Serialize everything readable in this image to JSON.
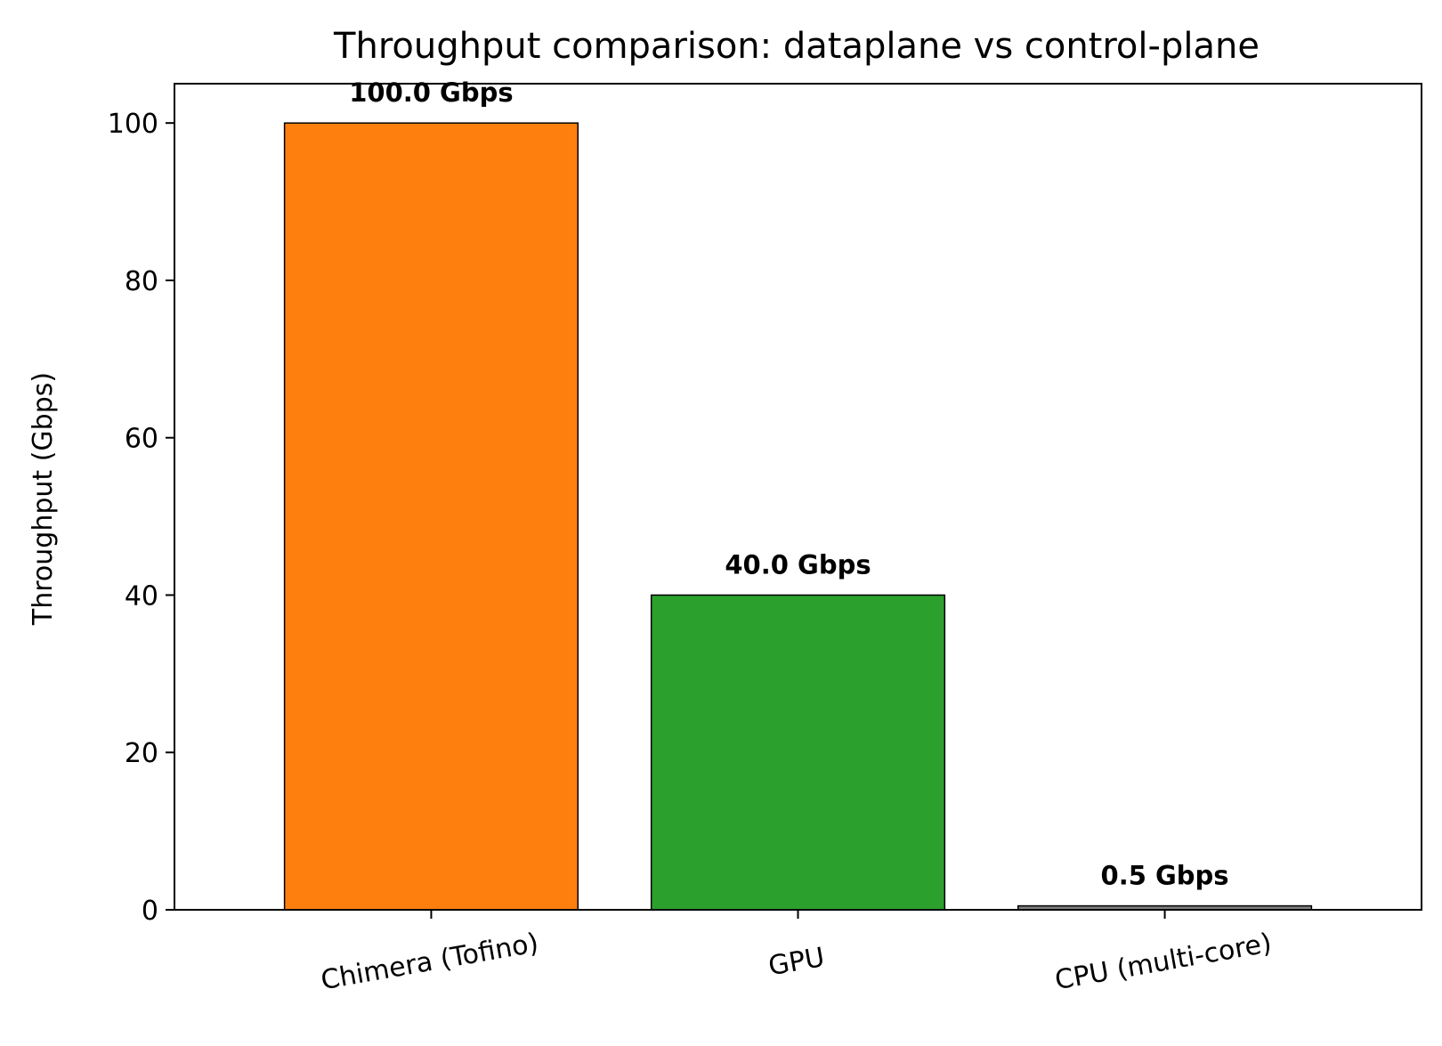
{
  "chart_data": {
    "type": "bar",
    "title": "Throughput comparison: dataplane vs control-plane",
    "xlabel": "",
    "ylabel": "Throughput (Gbps)",
    "categories": [
      "Chimera (Tofino)",
      "GPU",
      "CPU (multi-core)"
    ],
    "values": [
      100.0,
      40.0,
      0.5
    ],
    "data_labels": [
      "100.0 Gbps",
      "40.0 Gbps",
      "0.5 Gbps"
    ],
    "colors": [
      "#ff7f0e",
      "#2ca02c",
      "#7f7f7f"
    ],
    "ylim": [
      0,
      105
    ],
    "yticks": [
      0,
      20,
      40,
      60,
      80,
      100
    ],
    "grid": false,
    "legend": "none"
  }
}
